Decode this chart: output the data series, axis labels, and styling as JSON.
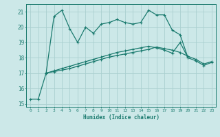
{
  "xlabel": "Humidex (Indice chaleur)",
  "x_values": [
    0,
    1,
    2,
    3,
    4,
    5,
    6,
    7,
    8,
    9,
    10,
    11,
    12,
    13,
    14,
    15,
    16,
    17,
    18,
    19,
    20,
    21,
    22,
    23
  ],
  "line1": [
    15.3,
    15.3,
    17.0,
    20.7,
    21.1,
    19.9,
    19.0,
    20.0,
    19.6,
    20.2,
    20.3,
    20.5,
    20.3,
    20.2,
    20.3,
    21.1,
    20.8,
    20.8,
    19.8,
    19.5,
    18.0,
    null,
    null,
    null
  ],
  "line2": [
    null,
    null,
    17.0,
    17.15,
    17.3,
    17.45,
    17.6,
    17.75,
    17.9,
    18.05,
    18.2,
    18.35,
    18.45,
    18.55,
    18.65,
    18.75,
    18.65,
    18.5,
    18.3,
    19.0,
    18.0,
    17.8,
    17.5,
    17.7
  ],
  "line3": [
    null,
    null,
    17.0,
    17.1,
    17.2,
    17.3,
    17.45,
    17.6,
    17.75,
    17.9,
    18.05,
    18.15,
    18.25,
    18.35,
    18.45,
    18.55,
    18.7,
    18.6,
    18.5,
    18.35,
    18.1,
    17.9,
    17.6,
    17.75
  ],
  "ylim": [
    14.8,
    21.5
  ],
  "xlim": [
    -0.5,
    23.5
  ],
  "yticks": [
    15,
    16,
    17,
    18,
    19,
    20,
    21
  ],
  "xticks": [
    0,
    1,
    2,
    3,
    4,
    5,
    6,
    7,
    8,
    9,
    10,
    11,
    12,
    13,
    14,
    15,
    16,
    17,
    18,
    19,
    20,
    21,
    22,
    23
  ],
  "line_color": "#1a7a6e",
  "bg_color": "#cce8e8",
  "grid_color": "#aad0d0",
  "markersize": 3,
  "linewidth": 0.9
}
